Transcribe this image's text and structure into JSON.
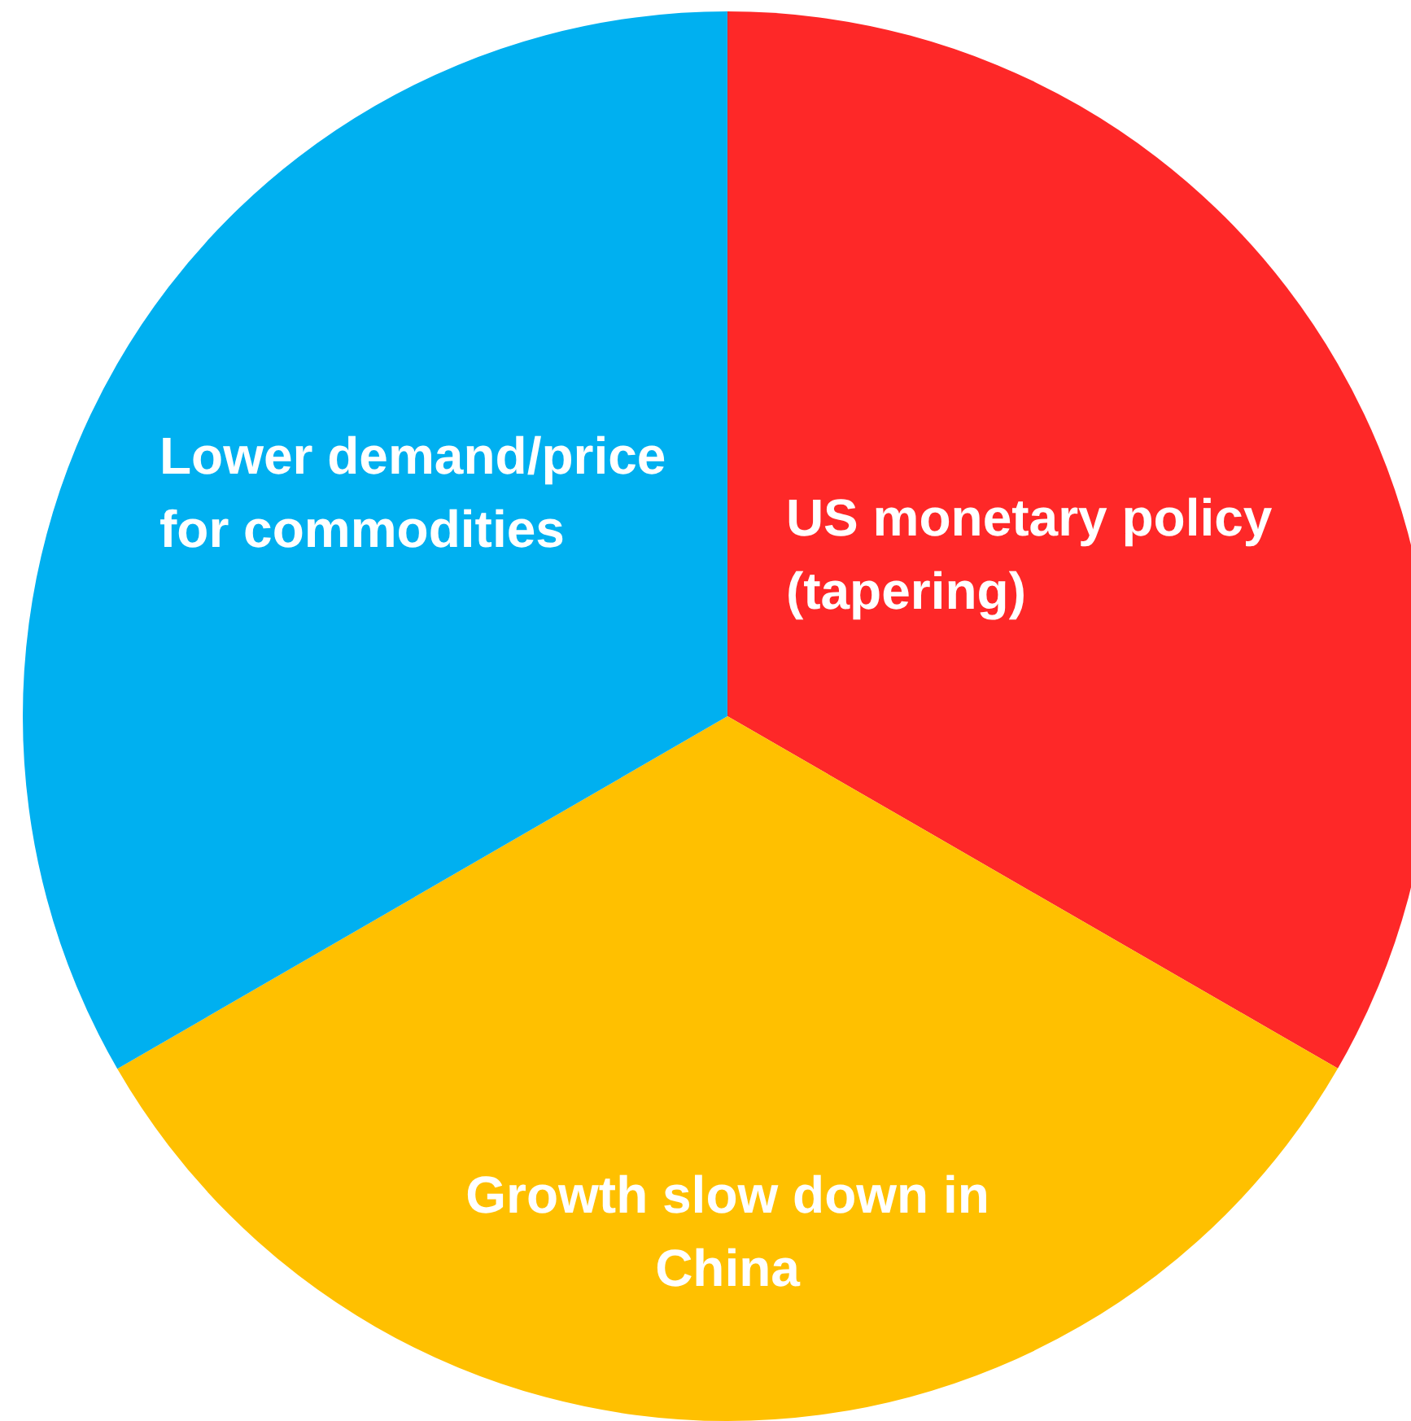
{
  "chart_data": {
    "type": "pie",
    "categories": [
      "US monetary policy (tapering)",
      "Growth slow down in China",
      "Lower demand/price for commodities"
    ],
    "values": [
      33.33,
      33.33,
      33.34
    ],
    "colors": [
      "#fe2828",
      "#ffc000",
      "#00b0f0"
    ]
  }
}
